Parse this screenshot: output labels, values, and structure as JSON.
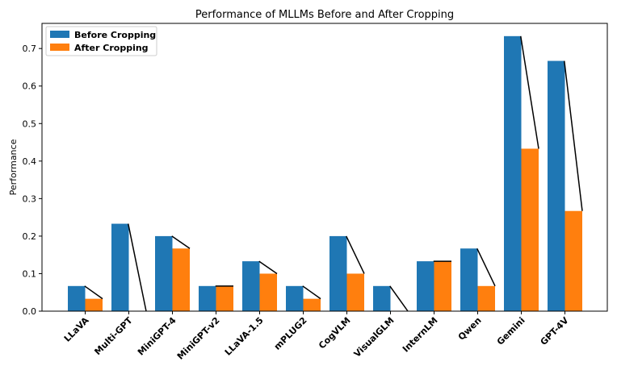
{
  "chart_data": {
    "type": "bar",
    "title": "Performance of MLLMs Before and After Cropping",
    "xlabel": "",
    "ylabel": "Performance",
    "ylim": [
      0,
      0.767
    ],
    "yticks": [
      0.0,
      0.1,
      0.2,
      0.3,
      0.4,
      0.5,
      0.6,
      0.7
    ],
    "ytick_labels": [
      "0.0",
      "0.1",
      "0.2",
      "0.3",
      "0.4",
      "0.5",
      "0.6",
      "0.7"
    ],
    "categories": [
      "LLaVA",
      "Multi-GPT",
      "MiniGPT-4",
      "MiniGPT-v2",
      "LLaVA-1.5",
      "mPLUG2",
      "CogVLM",
      "VisualGLM",
      "InternLM",
      "Qwen",
      "Gemini",
      "GPT-4V"
    ],
    "series": [
      {
        "name": "Before Cropping",
        "color": "#1f77b4",
        "values": [
          0.067,
          0.233,
          0.2,
          0.067,
          0.133,
          0.067,
          0.2,
          0.067,
          0.133,
          0.167,
          0.733,
          0.667
        ]
      },
      {
        "name": "After Cropping",
        "color": "#ff7f0e",
        "values": [
          0.033,
          0.0,
          0.167,
          0.067,
          0.1,
          0.033,
          0.1,
          0.0,
          0.133,
          0.067,
          0.433,
          0.267
        ]
      }
    ],
    "connector_lines": true,
    "legend": "top-left",
    "grid": false
  }
}
